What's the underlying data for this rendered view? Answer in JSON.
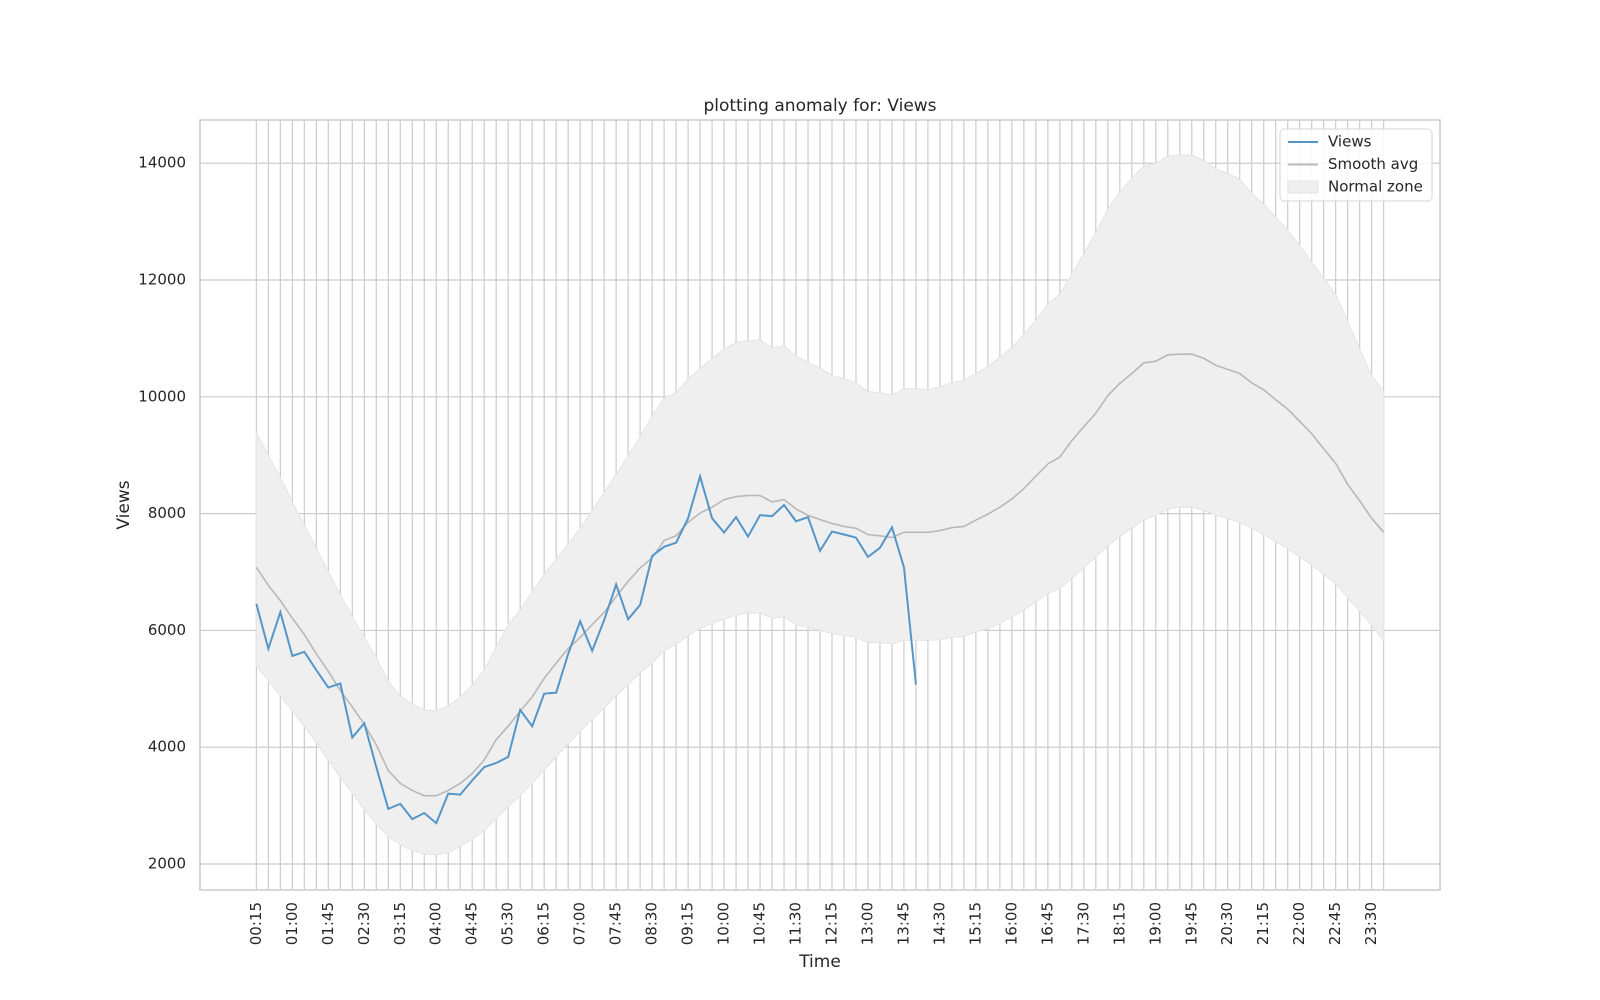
{
  "chart_data": {
    "type": "line",
    "title": "plotting anomaly for: Views",
    "xlabel": "Time",
    "ylabel": "Views",
    "categories": [
      "00:15",
      null,
      null,
      "01:00",
      null,
      null,
      "01:45",
      null,
      null,
      "02:30",
      null,
      null,
      "03:15",
      null,
      null,
      "04:00",
      null,
      null,
      "04:45",
      null,
      null,
      "05:30",
      null,
      null,
      "06:15",
      null,
      null,
      "07:00",
      null,
      null,
      "07:45",
      null,
      null,
      "08:30",
      null,
      null,
      "09:15",
      null,
      null,
      "10:00",
      null,
      null,
      "10:45",
      null,
      null,
      "11:30",
      null,
      null,
      "12:15",
      null,
      null,
      "13:00",
      null,
      null,
      "13:45",
      null,
      null,
      "14:30",
      null,
      null,
      "15:15",
      null,
      null,
      "16:00",
      null,
      null,
      "16:45",
      null,
      null,
      "17:30",
      null,
      null,
      "18:15",
      null,
      null,
      "19:00",
      null,
      null,
      "19:45",
      null,
      null,
      "20:30",
      null,
      null,
      "21:15",
      null,
      null,
      "22:00",
      null,
      null,
      "22:45",
      null,
      null,
      "23:30",
      null
    ],
    "series": [
      {
        "name": "Views",
        "color": "#5596c8",
        "values": [
          6454,
          5686,
          6314,
          5563,
          5633,
          5320,
          5022,
          5092,
          4166,
          4410,
          3660,
          2943,
          3030,
          2768,
          2873,
          2700,
          3205,
          3188,
          3432,
          3660,
          3730,
          3834,
          4638,
          4358,
          4917,
          4934,
          5598,
          6157,
          5650,
          6175,
          6786,
          6192,
          6437,
          7275,
          7432,
          7502,
          7921,
          8637,
          7921,
          7677,
          7939,
          7607,
          7974,
          7956,
          8148,
          7869,
          7939,
          7362,
          7694,
          7642,
          7590,
          7258,
          7415,
          7764,
          7083,
          5074,
          null,
          null,
          null,
          null,
          null,
          null,
          null,
          null,
          null,
          null,
          null,
          null,
          null,
          null,
          null,
          null,
          null,
          null,
          null,
          null,
          null,
          null,
          null,
          null,
          null,
          null,
          null,
          null,
          null,
          null,
          null,
          null,
          null,
          null,
          null,
          null,
          null,
          null,
          null
        ]
      },
      {
        "name": "Smooth avg",
        "color": "#b8b8b8",
        "values": [
          7083,
          6770,
          6510,
          6210,
          5930,
          5600,
          5300,
          4970,
          4690,
          4390,
          4040,
          3600,
          3380,
          3260,
          3170,
          3170,
          3260,
          3380,
          3550,
          3780,
          4130,
          4360,
          4620,
          4860,
          5180,
          5440,
          5690,
          5880,
          6100,
          6310,
          6580,
          6840,
          7070,
          7240,
          7540,
          7620,
          7850,
          8010,
          8110,
          8240,
          8290,
          8310,
          8310,
          8200,
          8240,
          8080,
          7970,
          7900,
          7830,
          7780,
          7750,
          7640,
          7620,
          7590,
          7680,
          7680,
          7680,
          7710,
          7760,
          7780,
          7890,
          7990,
          8110,
          8250,
          8430,
          8640,
          8850,
          8970,
          9250,
          9490,
          9720,
          10020,
          10230,
          10400,
          10580,
          10610,
          10720,
          10730,
          10730,
          10660,
          10540,
          10470,
          10400,
          10240,
          10120,
          9950,
          9790,
          9580,
          9370,
          9110,
          8860,
          8500,
          8220,
          7920,
          7680
        ]
      },
      {
        "name": "Normal zone",
        "color": "#efefef",
        "upper": [
          9390,
          9000,
          8620,
          8200,
          7800,
          7410,
          7010,
          6610,
          6240,
          5880,
          5530,
          5130,
          4880,
          4740,
          4640,
          4620,
          4710,
          4860,
          5060,
          5320,
          5720,
          6100,
          6350,
          6660,
          6960,
          7220,
          7480,
          7750,
          8060,
          8360,
          8670,
          8990,
          9320,
          9670,
          9980,
          10070,
          10300,
          10490,
          10660,
          10820,
          10930,
          10960,
          10980,
          10840,
          10870,
          10700,
          10590,
          10490,
          10370,
          10310,
          10240,
          10090,
          10070,
          10030,
          10140,
          10140,
          10120,
          10170,
          10240,
          10280,
          10400,
          10520,
          10680,
          10840,
          11070,
          11310,
          11590,
          11760,
          12100,
          12450,
          12810,
          13210,
          13510,
          13740,
          13950,
          14000,
          14120,
          14140,
          14140,
          14050,
          13900,
          13830,
          13720,
          13490,
          13300,
          13070,
          12860,
          12590,
          12310,
          12030,
          11750,
          11300,
          10820,
          10370,
          10090
        ],
        "lower": [
          5390,
          5140,
          4880,
          4620,
          4360,
          4080,
          3780,
          3480,
          3210,
          2930,
          2680,
          2470,
          2330,
          2230,
          2170,
          2160,
          2190,
          2300,
          2420,
          2580,
          2770,
          2980,
          3170,
          3380,
          3610,
          3830,
          4060,
          4270,
          4480,
          4670,
          4880,
          5070,
          5270,
          5440,
          5650,
          5760,
          5910,
          6030,
          6120,
          6190,
          6260,
          6300,
          6300,
          6210,
          6230,
          6100,
          6050,
          6000,
          5950,
          5910,
          5880,
          5790,
          5790,
          5770,
          5830,
          5830,
          5830,
          5840,
          5880,
          5900,
          5970,
          6030,
          6120,
          6230,
          6350,
          6490,
          6630,
          6720,
          6890,
          7070,
          7260,
          7450,
          7610,
          7750,
          7890,
          7970,
          8080,
          8110,
          8110,
          8060,
          7970,
          7920,
          7850,
          7750,
          7640,
          7520,
          7400,
          7260,
          7120,
          6960,
          6800,
          6560,
          6330,
          6090,
          5830
        ]
      }
    ],
    "ylim": [
      1555,
      14740
    ],
    "yticks": [
      2000,
      4000,
      6000,
      8000,
      10000,
      12000,
      14000
    ],
    "grid": true,
    "legend": "upper right"
  }
}
